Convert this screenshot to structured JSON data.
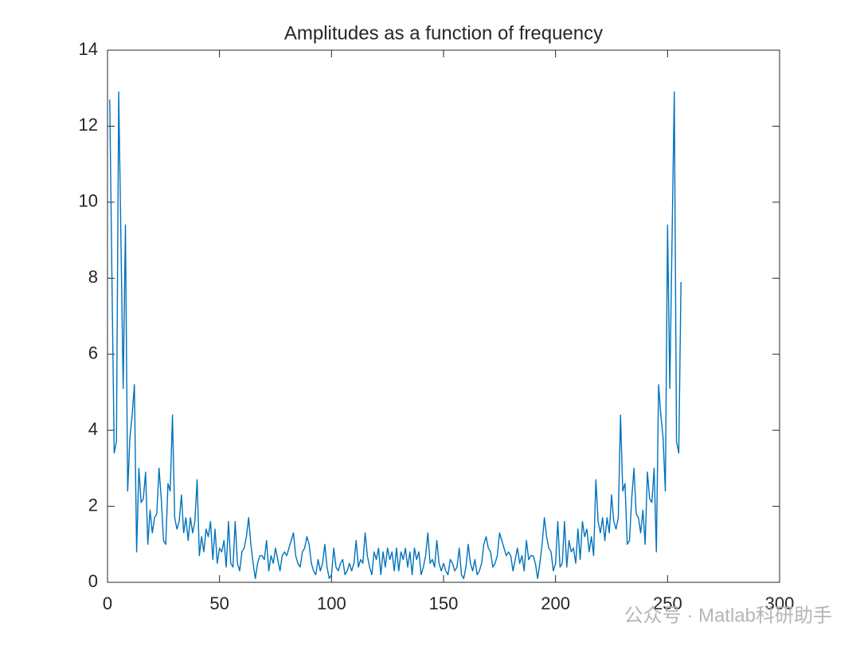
{
  "chart_data": {
    "type": "line",
    "title": "Amplitudes as a function of frequency",
    "watermark": "公众号 · Matlab科研助手",
    "xlim": [
      0,
      300
    ],
    "xticks": [
      0,
      50,
      100,
      150,
      200,
      250,
      300
    ],
    "ylim": [
      0,
      14
    ],
    "yticks": [
      0,
      2,
      4,
      6,
      8,
      10,
      12,
      14
    ],
    "grid": false,
    "color": "#0072BD",
    "x": [
      1,
      2,
      3,
      4,
      5,
      6,
      7,
      8,
      9,
      10,
      11,
      12,
      13,
      14,
      15,
      16,
      17,
      18,
      19,
      20,
      21,
      22,
      23,
      24,
      25,
      26,
      27,
      28,
      29,
      30,
      31,
      32,
      33,
      34,
      35,
      36,
      37,
      38,
      39,
      40,
      41,
      42,
      43,
      44,
      45,
      46,
      47,
      48,
      49,
      50,
      51,
      52,
      53,
      54,
      55,
      56,
      57,
      58,
      59,
      60,
      61,
      62,
      63,
      64,
      65,
      66,
      67,
      68,
      69,
      70,
      71,
      72,
      73,
      74,
      75,
      76,
      77,
      78,
      79,
      80,
      81,
      82,
      83,
      84,
      85,
      86,
      87,
      88,
      89,
      90,
      91,
      92,
      93,
      94,
      95,
      96,
      97,
      98,
      99,
      100,
      101,
      102,
      103,
      104,
      105,
      106,
      107,
      108,
      109,
      110,
      111,
      112,
      113,
      114,
      115,
      116,
      117,
      118,
      119,
      120,
      121,
      122,
      123,
      124,
      125,
      126,
      127,
      128,
      129,
      130,
      131,
      132,
      133,
      134,
      135,
      136,
      137,
      138,
      139,
      140,
      141,
      142,
      143,
      144,
      145,
      146,
      147,
      148,
      149,
      150,
      151,
      152,
      153,
      154,
      155,
      156,
      157,
      158,
      159,
      160,
      161,
      162,
      163,
      164,
      165,
      166,
      167,
      168,
      169,
      170,
      171,
      172,
      173,
      174,
      175,
      176,
      177,
      178,
      179,
      180,
      181,
      182,
      183,
      184,
      185,
      186,
      187,
      188,
      189,
      190,
      191,
      192,
      193,
      194,
      195,
      196,
      197,
      198,
      199,
      200,
      201,
      202,
      203,
      204,
      205,
      206,
      207,
      208,
      209,
      210,
      211,
      212,
      213,
      214,
      215,
      216,
      217,
      218,
      219,
      220,
      221,
      222,
      223,
      224,
      225,
      226,
      227,
      228,
      229,
      230,
      231,
      232,
      233,
      234,
      235,
      236,
      237,
      238,
      239,
      240,
      241,
      242,
      243,
      244,
      245,
      246,
      247,
      248,
      249,
      250,
      251,
      252,
      253,
      254,
      255,
      256
    ],
    "values": [
      12.7,
      7.9,
      3.4,
      3.7,
      12.9,
      9.0,
      5.1,
      9.4,
      2.4,
      3.8,
      4.4,
      5.2,
      0.8,
      3.0,
      2.1,
      2.2,
      2.9,
      1.0,
      1.9,
      1.3,
      1.7,
      1.8,
      3.0,
      2.2,
      1.1,
      1.0,
      2.6,
      2.4,
      4.4,
      1.7,
      1.4,
      1.6,
      2.3,
      1.3,
      1.7,
      1.1,
      1.7,
      1.3,
      1.6,
      2.7,
      0.7,
      1.2,
      0.8,
      1.4,
      1.2,
      1.6,
      0.6,
      1.4,
      0.5,
      0.9,
      0.8,
      1.1,
      0.4,
      1.6,
      0.5,
      0.4,
      1.6,
      0.5,
      0.3,
      0.8,
      0.9,
      1.2,
      1.7,
      1.0,
      0.5,
      0.1,
      0.5,
      0.7,
      0.7,
      0.6,
      1.1,
      0.3,
      0.7,
      0.5,
      0.9,
      0.6,
      0.3,
      0.7,
      0.8,
      0.7,
      0.9,
      1.1,
      1.3,
      0.7,
      0.5,
      0.4,
      0.8,
      0.9,
      1.2,
      1.0,
      0.5,
      0.3,
      0.2,
      0.6,
      0.3,
      0.5,
      1.0,
      0.4,
      0.1,
      0.2,
      0.9,
      0.4,
      0.3,
      0.5,
      0.6,
      0.2,
      0.3,
      0.5,
      0.3,
      0.5,
      1.1,
      0.4,
      0.6,
      0.5,
      1.3,
      0.7,
      0.4,
      0.2,
      0.8,
      0.6,
      0.9,
      0.2,
      0.8,
      0.4,
      0.9,
      0.6,
      0.8,
      0.3,
      0.9,
      0.3,
      0.8,
      0.6,
      0.9,
      0.4,
      0.8,
      0.2,
      0.9,
      0.6,
      0.8,
      0.2,
      0.4,
      0.7,
      1.3,
      0.5,
      0.6,
      0.4,
      1.1,
      0.5,
      0.3,
      0.5,
      0.3,
      0.2,
      0.6,
      0.5,
      0.3,
      0.4,
      0.9,
      0.2,
      0.1,
      0.4,
      1.0,
      0.5,
      0.3,
      0.6,
      0.2,
      0.3,
      0.5,
      1.0,
      1.2,
      0.9,
      0.8,
      0.4,
      0.5,
      0.7,
      1.3,
      1.1,
      0.9,
      0.7,
      0.8,
      0.7,
      0.3,
      0.6,
      0.9,
      0.5,
      0.7,
      0.3,
      1.1,
      0.6,
      0.7,
      0.7,
      0.5,
      0.1,
      0.5,
      1.0,
      1.7,
      1.2,
      0.9,
      0.8,
      0.3,
      0.5,
      1.6,
      0.4,
      0.5,
      1.6,
      0.4,
      1.1,
      0.8,
      0.9,
      0.5,
      1.4,
      0.6,
      1.6,
      1.2,
      1.4,
      0.8,
      1.2,
      0.7,
      2.7,
      1.6,
      1.3,
      1.7,
      1.1,
      1.7,
      1.3,
      2.3,
      1.6,
      1.4,
      1.7,
      4.4,
      2.4,
      2.6,
      1.0,
      1.1,
      2.2,
      3.0,
      1.8,
      1.7,
      1.3,
      1.9,
      1.0,
      2.9,
      2.2,
      2.1,
      3.0,
      0.8,
      5.2,
      4.4,
      3.8,
      2.4,
      9.4,
      5.1,
      9.0,
      12.9,
      3.7,
      3.4,
      7.9
    ]
  }
}
